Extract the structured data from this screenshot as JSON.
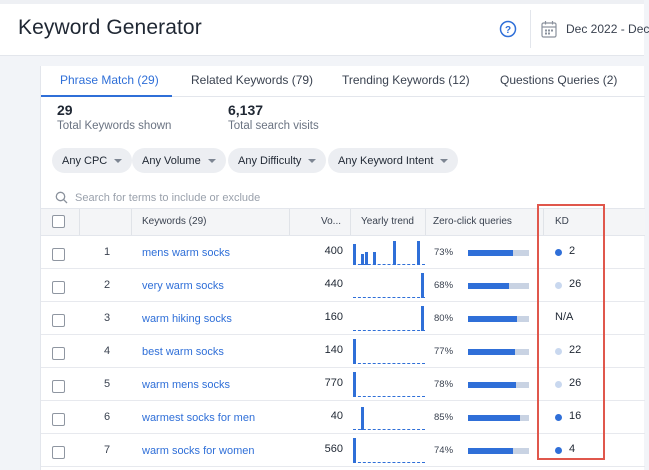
{
  "app": {
    "title": "Keyword Generator",
    "date_range": "Dec 2022 - Dec",
    "icons": {
      "help": "help-circle-icon",
      "calendar": "calendar-icon",
      "search": "search-icon"
    }
  },
  "tabs": [
    {
      "label": "Phrase Match (29)",
      "active": true
    },
    {
      "label": "Related Keywords (79)",
      "active": false
    },
    {
      "label": "Trending Keywords (12)",
      "active": false
    },
    {
      "label": "Questions Queries (2)",
      "active": false
    }
  ],
  "metrics": [
    {
      "value": "29",
      "label": "Total Keywords shown"
    },
    {
      "value": "6,137",
      "label": "Total search visits"
    }
  ],
  "filters": [
    "Any CPC",
    "Any Volume",
    "Any Difficulty",
    "Any Keyword Intent"
  ],
  "search": {
    "placeholder": "Search for terms to include or exclude"
  },
  "table": {
    "columns": [
      "Keywords (29)",
      "Vo...",
      "Yearly trend",
      "Zero-click queries",
      "KD"
    ],
    "rows": [
      {
        "num": "1",
        "keyword": "mens warm socks",
        "volume": "400",
        "zero_click": "73%",
        "zero_click_value": 0.73,
        "kd": "2",
        "kd_level": "high",
        "trend": [
          0.85,
          0,
          0.45,
          0.5,
          0,
          0.5,
          0,
          0,
          0,
          0,
          0.95,
          0,
          0,
          0,
          0,
          0,
          0.95,
          0
        ]
      },
      {
        "num": "2",
        "keyword": "very warm socks",
        "volume": "440",
        "zero_click": "68%",
        "zero_click_value": 0.68,
        "kd": "26",
        "kd_level": "low",
        "trend": [
          0,
          0,
          0,
          0,
          0,
          0,
          0,
          0,
          0,
          0,
          0,
          0,
          0,
          0,
          0,
          0,
          0,
          1.0
        ]
      },
      {
        "num": "3",
        "keyword": "warm hiking socks",
        "volume": "160",
        "zero_click": "80%",
        "zero_click_value": 0.8,
        "kd": "N/A",
        "kd_level": "none",
        "trend": [
          0,
          0,
          0,
          0,
          0,
          0,
          0,
          0,
          0,
          0,
          0,
          0,
          0,
          0,
          0,
          0,
          0,
          1.0
        ]
      },
      {
        "num": "4",
        "keyword": "best warm socks",
        "volume": "140",
        "zero_click": "77%",
        "zero_click_value": 0.77,
        "kd": "22",
        "kd_level": "low",
        "trend": [
          1.0,
          0,
          0,
          0,
          0,
          0,
          0,
          0,
          0,
          0,
          0,
          0,
          0,
          0,
          0,
          0,
          0,
          0
        ]
      },
      {
        "num": "5",
        "keyword": "warm mens socks",
        "volume": "770",
        "zero_click": "78%",
        "zero_click_value": 0.78,
        "kd": "26",
        "kd_level": "low",
        "trend": [
          1.0,
          0,
          0,
          0,
          0,
          0,
          0,
          0,
          0,
          0,
          0,
          0,
          0,
          0,
          0,
          0,
          0,
          0
        ]
      },
      {
        "num": "6",
        "keyword": "warmest socks for men",
        "volume": "40",
        "zero_click": "85%",
        "zero_click_value": 0.85,
        "kd": "16",
        "kd_level": "high",
        "trend": [
          0,
          0,
          0.9,
          0,
          0,
          0,
          0,
          0,
          0,
          0,
          0,
          0,
          0,
          0,
          0,
          0,
          0,
          0
        ]
      },
      {
        "num": "7",
        "keyword": "warm socks for women",
        "volume": "560",
        "zero_click": "74%",
        "zero_click_value": 0.74,
        "kd": "4",
        "kd_level": "high",
        "trend": [
          1.0,
          0,
          0,
          0,
          0,
          0,
          0,
          0,
          0,
          0,
          0,
          0,
          0,
          0,
          0,
          0,
          0,
          0
        ]
      }
    ]
  },
  "colors": {
    "accent": "#2f6fd8",
    "kd_high": "#2f6fd8",
    "kd_low": "#c9d8ef",
    "highlight": "#e0574c"
  }
}
